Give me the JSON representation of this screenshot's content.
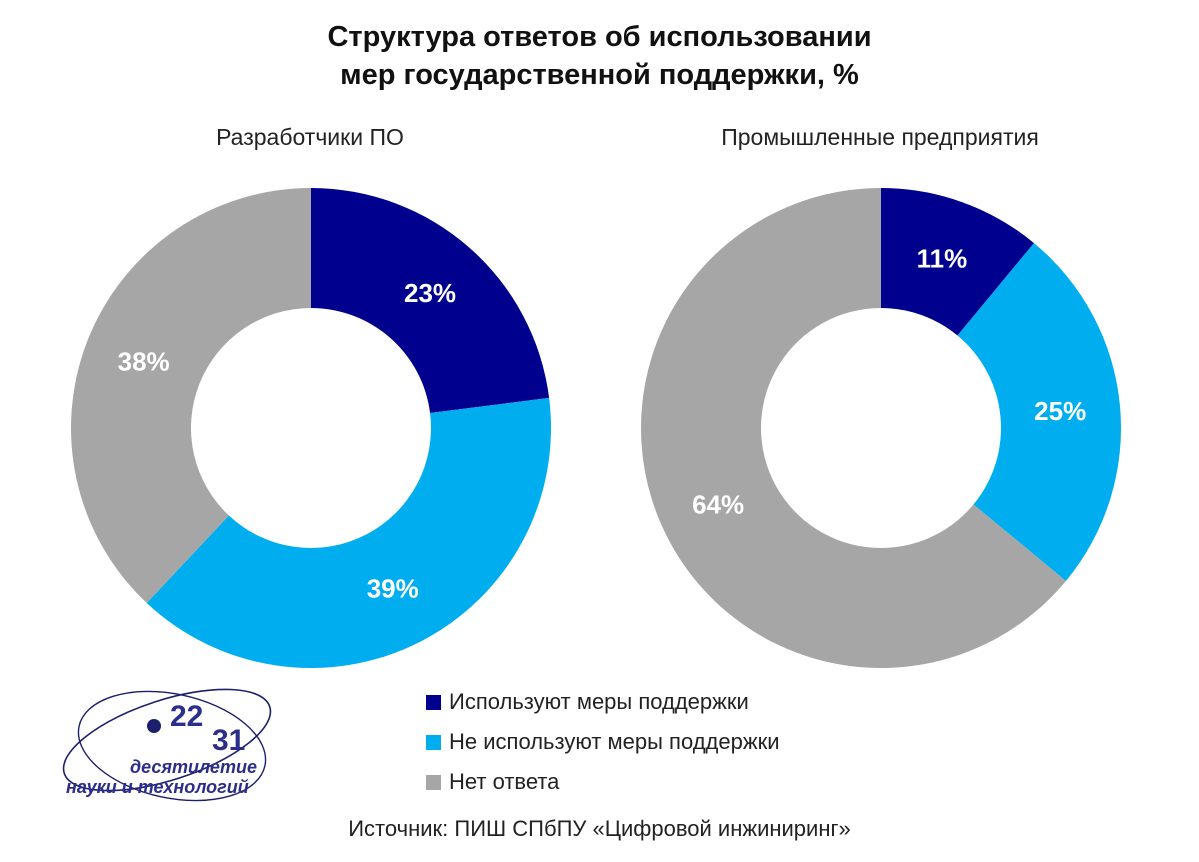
{
  "title_line1": "Структура ответов об использовании",
  "title_line2": "мер государственной поддержки, %",
  "legend": [
    {
      "label": "Используют меры поддержки",
      "color": "#00008f"
    },
    {
      "label": "Не используют меры поддержки",
      "color": "#00aeef"
    },
    {
      "label": "Нет ответа",
      "color": "#a6a6a6"
    }
  ],
  "source": "Источник: ПИШ СПбПУ «Цифровой инжиниринг»",
  "logo": {
    "top_number": "22",
    "bottom_number": "31",
    "line1": "десятилетие",
    "line2": "науки и технологий"
  },
  "chart_data": [
    {
      "type": "pie",
      "subtitle": "Разработчики ПО",
      "categories": [
        "Используют меры поддержки",
        "Не используют меры поддержки",
        "Нет ответа"
      ],
      "values": [
        23,
        39,
        38
      ],
      "labels": [
        "23%",
        "39%",
        "38%"
      ],
      "colors": [
        "#00008f",
        "#00aeef",
        "#a6a6a6"
      ],
      "donut": true
    },
    {
      "type": "pie",
      "subtitle": "Промышленные предприятия",
      "categories": [
        "Используют меры поддержки",
        "Не используют меры поддержки",
        "Нет ответа"
      ],
      "values": [
        11,
        25,
        64
      ],
      "labels": [
        "11%",
        "25%",
        "64%"
      ],
      "colors": [
        "#00008f",
        "#00aeef",
        "#a6a6a6"
      ],
      "donut": true
    }
  ]
}
